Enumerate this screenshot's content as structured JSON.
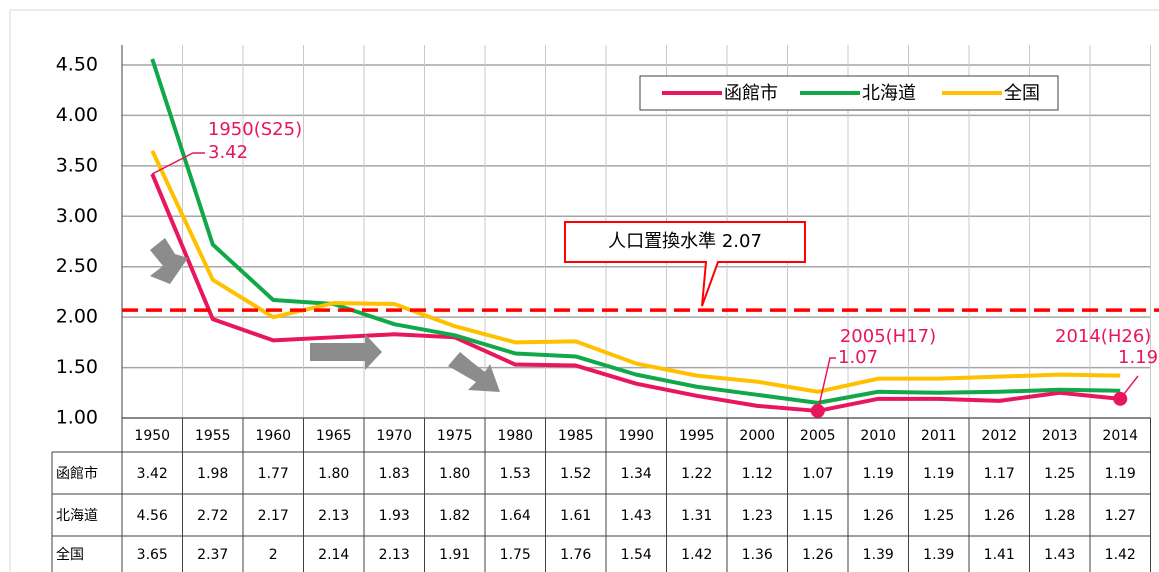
{
  "chart_data": {
    "type": "line",
    "categories": [
      "1950",
      "1955",
      "1960",
      "1965",
      "1970",
      "1975",
      "1980",
      "1985",
      "1990",
      "1995",
      "2000",
      "2005",
      "2010",
      "2011",
      "2012",
      "2013",
      "2014"
    ],
    "series": [
      {
        "name": "函館市",
        "color": "#e8175d",
        "values": [
          3.42,
          1.98,
          1.77,
          1.8,
          1.83,
          1.8,
          1.53,
          1.52,
          1.34,
          1.22,
          1.12,
          1.07,
          1.19,
          1.19,
          1.17,
          1.25,
          1.19
        ],
        "value_labels": [
          "3.42",
          "1.98",
          "1.77",
          "1.80",
          "1.83",
          "1.80",
          "1.53",
          "1.52",
          "1.34",
          "1.22",
          "1.12",
          "1.07",
          "1.19",
          "1.19",
          "1.17",
          "1.25",
          "1.19"
        ]
      },
      {
        "name": "北海道",
        "color": "#12a84a",
        "values": [
          4.56,
          2.72,
          2.17,
          2.13,
          1.93,
          1.82,
          1.64,
          1.61,
          1.43,
          1.31,
          1.23,
          1.15,
          1.26,
          1.25,
          1.26,
          1.28,
          1.27
        ],
        "value_labels": [
          "4.56",
          "2.72",
          "2.17",
          "2.13",
          "1.93",
          "1.82",
          "1.64",
          "1.61",
          "1.43",
          "1.31",
          "1.23",
          "1.15",
          "1.26",
          "1.25",
          "1.26",
          "1.28",
          "1.27"
        ]
      },
      {
        "name": "全国",
        "color": "#ffc000",
        "values": [
          3.65,
          2.37,
          2,
          2.14,
          2.13,
          1.91,
          1.75,
          1.76,
          1.54,
          1.42,
          1.36,
          1.26,
          1.39,
          1.39,
          1.41,
          1.43,
          1.42
        ],
        "value_labels": [
          "3.65",
          "2.37",
          "2",
          "2.14",
          "2.13",
          "1.91",
          "1.75",
          "1.76",
          "1.54",
          "1.42",
          "1.36",
          "1.26",
          "1.39",
          "1.39",
          "1.41",
          "1.43",
          "1.42"
        ]
      }
    ],
    "ylim": [
      1,
      4.5
    ],
    "yticks": [
      {
        "value": 1,
        "label": "1.00"
      },
      {
        "value": 1.5,
        "label": "1.50"
      },
      {
        "value": 2,
        "label": "2.00"
      },
      {
        "value": 2.5,
        "label": "2.50"
      },
      {
        "value": 3,
        "label": "3.00"
      },
      {
        "value": 3.5,
        "label": "3.50"
      },
      {
        "value": 4,
        "label": "4.00"
      },
      {
        "value": 4.5,
        "label": "4.50"
      }
    ],
    "grid": true,
    "legend": "top-right",
    "reference_line": {
      "value": 2.07,
      "label": "人口置換水準 2.07",
      "color": "#ff0000"
    },
    "annotations": [
      "1950(S25)",
      "2005(H17)",
      "2014(H26)"
    ]
  }
}
